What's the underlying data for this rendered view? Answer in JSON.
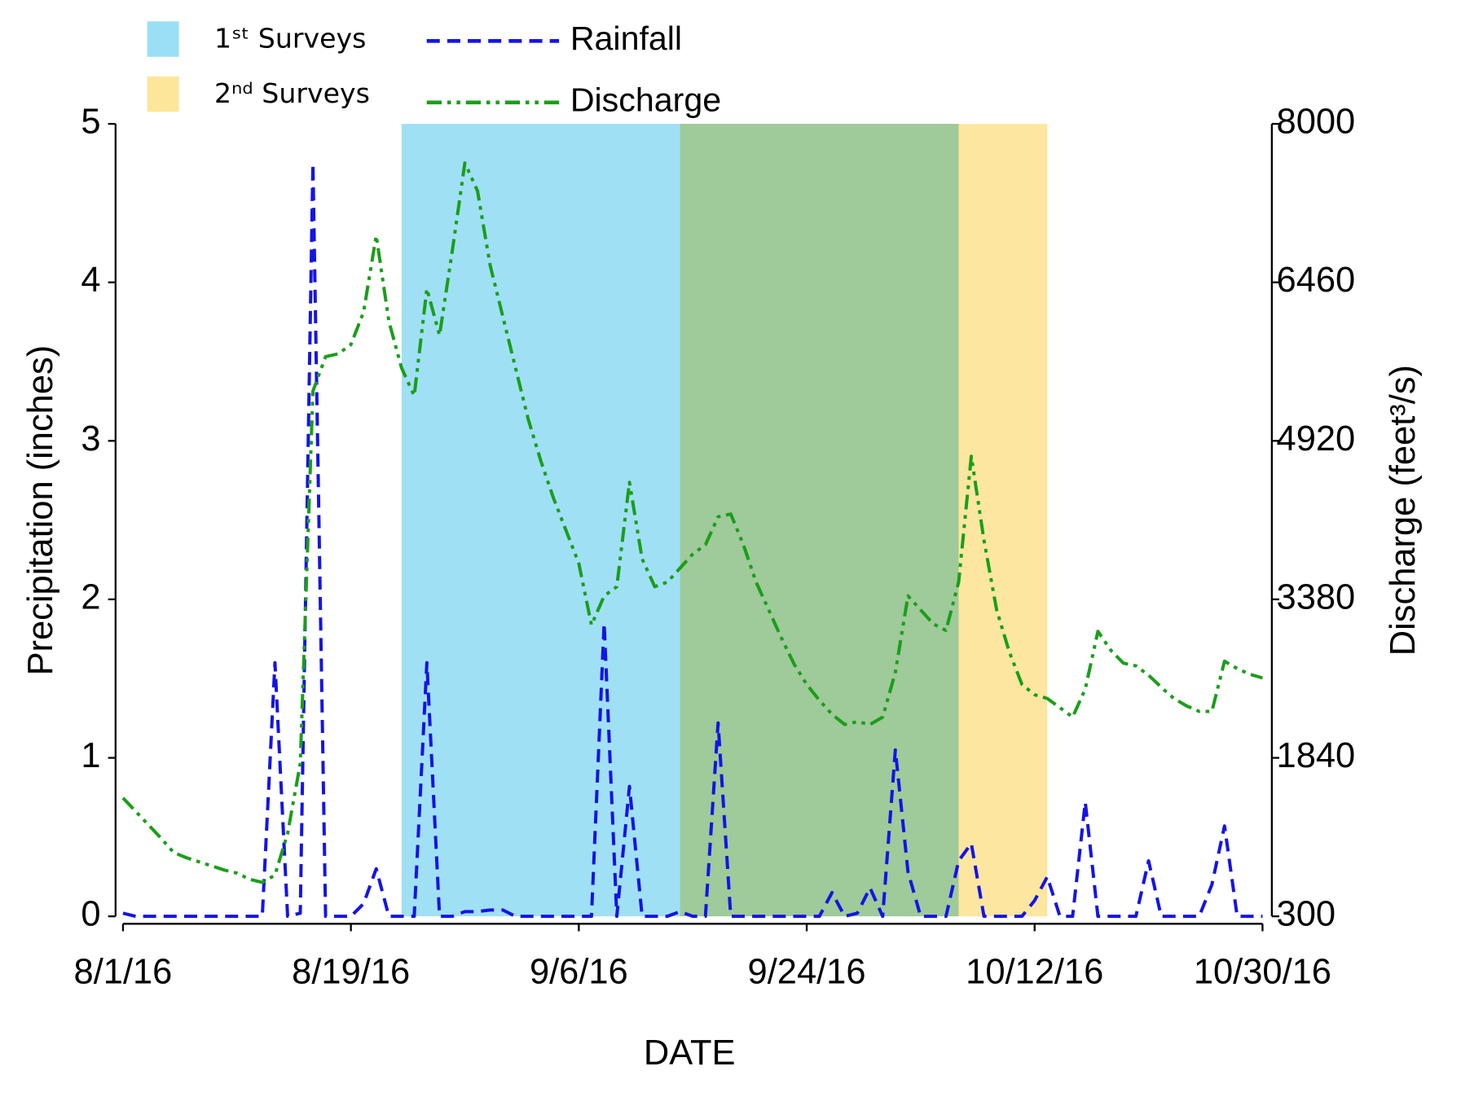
{
  "chart_data": {
    "type": "line",
    "xlabel": "DATE",
    "ylabel": "Precipitation (inches)",
    "y2label": "Discharge (feet³/s)",
    "x": [
      "8/1/16",
      "8/2/16",
      "8/3/16",
      "8/4/16",
      "8/5/16",
      "8/6/16",
      "8/7/16",
      "8/8/16",
      "8/9/16",
      "8/10/16",
      "8/11/16",
      "8/12/16",
      "8/13/16",
      "8/14/16",
      "8/15/16",
      "8/16/16",
      "8/17/16",
      "8/18/16",
      "8/19/16",
      "8/20/16",
      "8/21/16",
      "8/22/16",
      "8/23/16",
      "8/24/16",
      "8/25/16",
      "8/26/16",
      "8/27/16",
      "8/28/16",
      "8/29/16",
      "8/30/16",
      "8/31/16",
      "9/1/16",
      "9/2/16",
      "9/3/16",
      "9/4/16",
      "9/5/16",
      "9/6/16",
      "9/7/16",
      "9/8/16",
      "9/9/16",
      "9/10/16",
      "9/11/16",
      "9/12/16",
      "9/13/16",
      "9/14/16",
      "9/15/16",
      "9/16/16",
      "9/17/16",
      "9/18/16",
      "9/19/16",
      "9/20/16",
      "9/21/16",
      "9/22/16",
      "9/23/16",
      "9/24/16",
      "9/25/16",
      "9/26/16",
      "9/27/16",
      "9/28/16",
      "9/29/16",
      "9/30/16",
      "10/1/16",
      "10/2/16",
      "10/3/16",
      "10/4/16",
      "10/5/16",
      "10/6/16",
      "10/7/16",
      "10/8/16",
      "10/9/16",
      "10/10/16",
      "10/11/16",
      "10/12/16",
      "10/13/16",
      "10/14/16",
      "10/15/16",
      "10/16/16",
      "10/17/16",
      "10/18/16",
      "10/19/16",
      "10/20/16",
      "10/21/16",
      "10/22/16",
      "10/23/16",
      "10/24/16",
      "10/25/16",
      "10/26/16",
      "10/27/16",
      "10/28/16",
      "10/29/16",
      "10/30/16"
    ],
    "xticks": [
      "8/1/16",
      "8/19/16",
      "9/6/16",
      "9/24/16",
      "10/12/16",
      "10/30/16"
    ],
    "ylim": [
      0,
      5
    ],
    "yticks": [
      0,
      1,
      2,
      3,
      4,
      5
    ],
    "y2lim": [
      300,
      8000
    ],
    "y2ticks": [
      300,
      1840,
      3380,
      4920,
      6460,
      8000
    ],
    "shaded_periods": [
      {
        "name": "1ˢᵗ Surveys",
        "color": "#9bdff5",
        "start": "8/23/16",
        "end": "10/6/16"
      },
      {
        "name": "2ⁿᵈ Surveys",
        "color": "#fde59a",
        "start": "9/14/16",
        "end": "10/13/16"
      }
    ],
    "series": [
      {
        "name": "Rainfall",
        "color": "#1414e6",
        "axis": "y",
        "dash": "dashed",
        "values": [
          0.02,
          0,
          0,
          0,
          0,
          0,
          0,
          0,
          0,
          0,
          0,
          0,
          1.6,
          0,
          0.02,
          4.75,
          0,
          0,
          0,
          0.08,
          0.3,
          0,
          0,
          0,
          1.6,
          0,
          0,
          0.03,
          0.03,
          0.04,
          0.04,
          0,
          0,
          0,
          0,
          0,
          0,
          0,
          1.85,
          0,
          0.82,
          0,
          0,
          0,
          0.03,
          0,
          0,
          1.22,
          0,
          0,
          0,
          0,
          0,
          0,
          0,
          0,
          0.15,
          0,
          0.02,
          0.18,
          0,
          1.05,
          0.28,
          0,
          0,
          0,
          0.35,
          0.46,
          0,
          0,
          0,
          0,
          0.1,
          0.25,
          0,
          0,
          0.72,
          0,
          0,
          0,
          0,
          0.35,
          0,
          0,
          0,
          0,
          0.2,
          0.57,
          0,
          0,
          0
        ]
      },
      {
        "name": "Discharge",
        "color": "#1a9e1a",
        "axis": "y2",
        "dash": "dash-dot-dot",
        "values": [
          1450,
          1320,
          1190,
          1060,
          920,
          870,
          830,
          790,
          750,
          720,
          660,
          630,
          700,
          1105,
          1784,
          5403,
          5738,
          5765,
          5855,
          6172,
          6914,
          6081,
          5629,
          5358,
          6398,
          5946,
          6760,
          7620,
          7348,
          6624,
          6127,
          5629,
          5132,
          4725,
          4363,
          4046,
          3729,
          3130,
          3413,
          3503,
          4517,
          3774,
          3503,
          3548,
          3684,
          3820,
          3910,
          4182,
          4209,
          3910,
          3548,
          3277,
          3005,
          2752,
          2553,
          2399,
          2263,
          2164,
          2191,
          2164,
          2236,
          2671,
          3413,
          3277,
          3141,
          3078,
          3548,
          4770,
          3955,
          3277,
          2870,
          2553,
          2453,
          2417,
          2327,
          2236,
          2508,
          3069,
          2888,
          2761,
          2734,
          2643,
          2526,
          2417,
          2345,
          2291,
          2291,
          2779,
          2707,
          2652,
          2616
        ]
      }
    ]
  }
}
